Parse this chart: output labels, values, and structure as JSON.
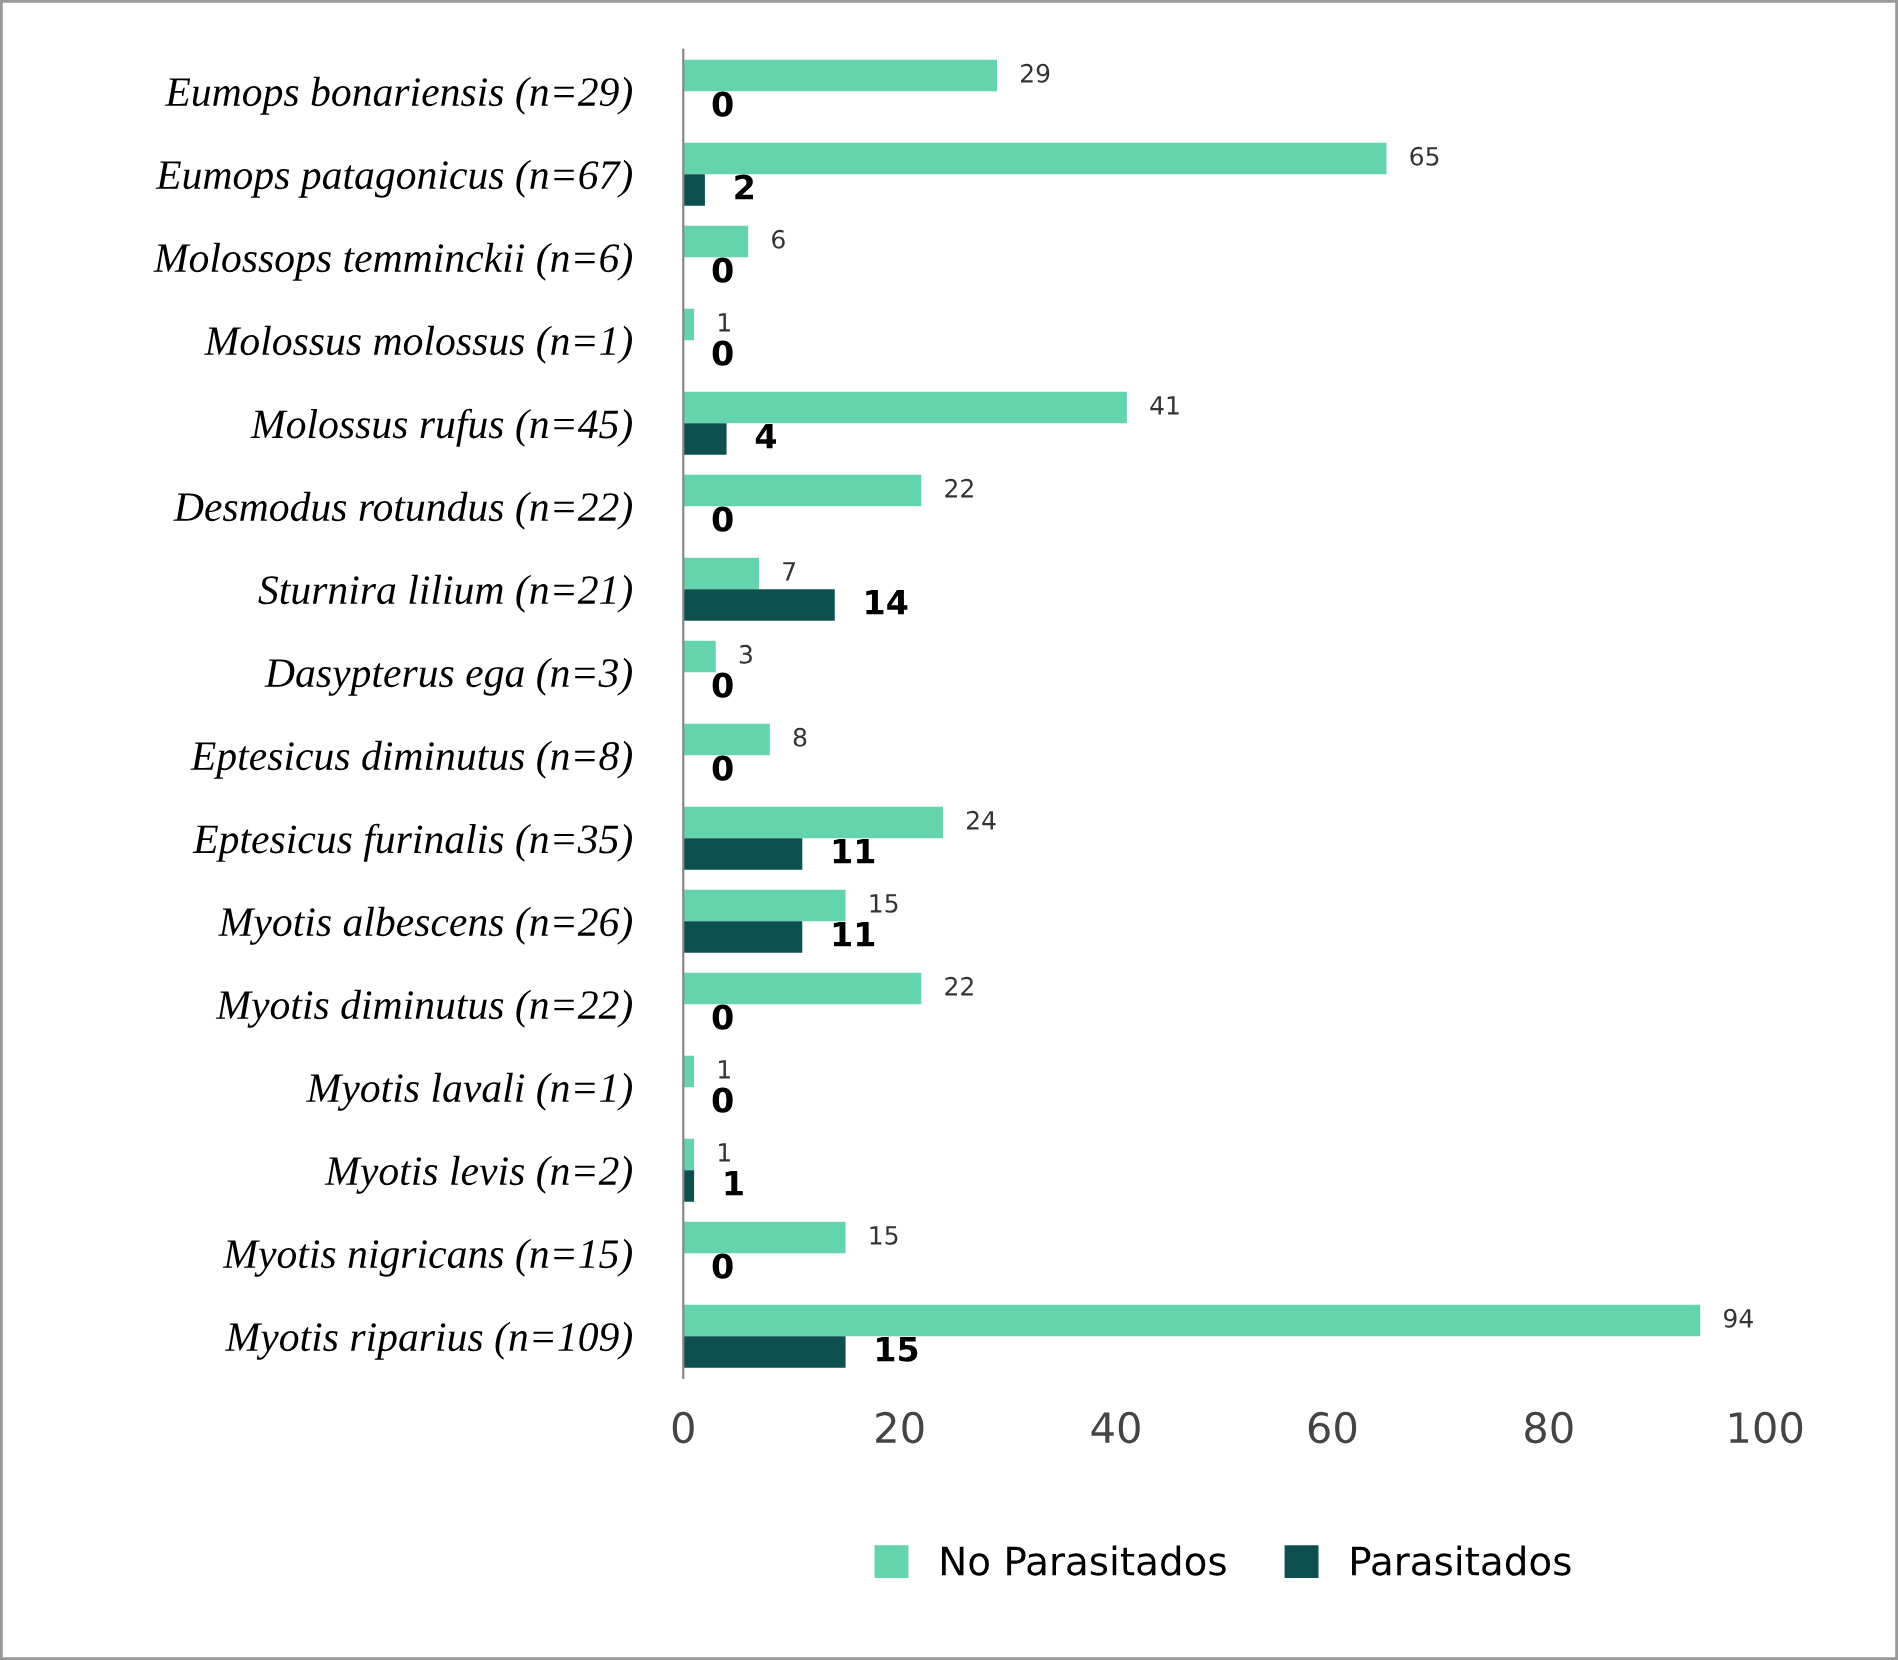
{
  "chart_data": {
    "type": "bar",
    "orientation": "horizontal",
    "categories": [
      "Eumops bonariensis (n=29)",
      "Eumops patagonicus (n=67)",
      "Molossops temminckii (n=6)",
      "Molossus molossus (n=1)",
      "Molossus rufus (n=45)",
      "Desmodus rotundus (n=22)",
      "Sturnira lilium (n=21)",
      "Dasypterus ega (n=3)",
      "Eptesicus diminutus (n=8)",
      "Eptesicus furinalis (n=35)",
      "Myotis albescens (n=26)",
      "Myotis diminutus (n=22)",
      "Myotis lavali (n=1)",
      "Myotis levis (n=2)",
      "Myotis nigricans (n=15)",
      "Myotis riparius (n=109)"
    ],
    "series": [
      {
        "name": "No Parasitados",
        "color": "#63d4ab",
        "values": [
          29,
          65,
          6,
          1,
          41,
          22,
          7,
          3,
          8,
          24,
          15,
          22,
          1,
          1,
          15,
          94
        ]
      },
      {
        "name": "Parasitados",
        "color": "#0e5050",
        "values": [
          0,
          2,
          0,
          0,
          4,
          0,
          14,
          0,
          0,
          11,
          11,
          0,
          0,
          1,
          0,
          15
        ]
      }
    ],
    "xlim": [
      0,
      100
    ],
    "xticks": [
      0,
      20,
      40,
      60,
      80,
      100
    ],
    "grid": false,
    "legend": "bottom",
    "data_labels": true
  }
}
